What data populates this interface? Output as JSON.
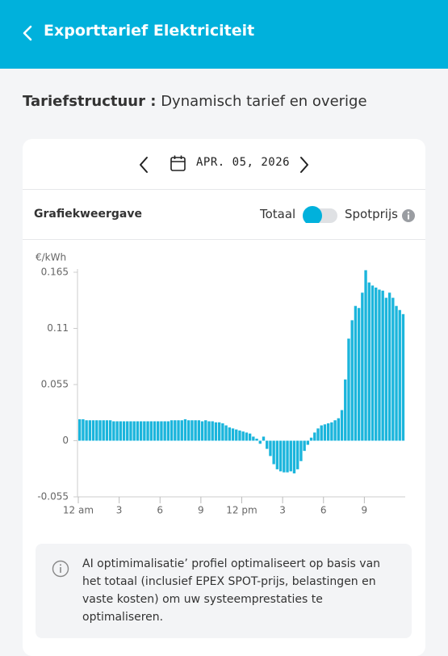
{
  "header": {
    "title": "Exporttarief Elektriciteit"
  },
  "tariff": {
    "label": "Tariefstructuur :",
    "value": "Dynamisch tarief en overige"
  },
  "date": "APR. 05, 2026",
  "view": {
    "label": "Grafiekweergave",
    "toggle_left": "Totaal",
    "toggle_right": "Spotprijs"
  },
  "chart_data": {
    "type": "bar",
    "y_label": "€/kWh",
    "color": "#1bb5dc",
    "x": [
      0,
      0.25,
      0.5,
      0.75,
      1,
      1.25,
      1.5,
      1.75,
      2,
      2.25,
      2.5,
      2.75,
      3,
      3.25,
      3.5,
      3.75,
      4,
      4.25,
      4.5,
      4.75,
      5,
      5.25,
      5.5,
      5.75,
      6,
      6.25,
      6.5,
      6.75,
      7,
      7.25,
      7.5,
      7.75,
      8,
      8.25,
      8.5,
      8.75,
      9,
      9.25,
      9.5,
      9.75,
      10,
      10.25,
      10.5,
      10.75,
      11,
      11.25,
      11.5,
      11.75,
      12,
      12.25,
      12.5,
      12.75,
      13,
      13.25,
      13.5,
      13.75,
      14,
      14.25,
      14.5,
      14.75,
      15,
      15.25,
      15.5,
      15.75,
      16,
      16.25,
      16.5,
      16.75,
      17,
      17.25,
      17.5,
      17.75,
      18,
      18.25,
      18.5,
      18.75,
      19,
      19.25,
      19.5,
      19.75,
      20,
      20.25,
      20.5,
      20.75,
      21,
      21.25,
      21.5,
      21.75,
      22,
      22.25,
      22.5,
      22.75,
      23,
      23.25,
      23.5,
      23.75
    ],
    "values": [
      0.021,
      0.021,
      0.02,
      0.02,
      0.02,
      0.02,
      0.02,
      0.02,
      0.02,
      0.02,
      0.019,
      0.019,
      0.019,
      0.019,
      0.019,
      0.019,
      0.019,
      0.019,
      0.019,
      0.019,
      0.019,
      0.019,
      0.019,
      0.019,
      0.019,
      0.019,
      0.019,
      0.02,
      0.02,
      0.02,
      0.02,
      0.021,
      0.02,
      0.02,
      0.02,
      0.02,
      0.019,
      0.02,
      0.019,
      0.019,
      0.018,
      0.018,
      0.017,
      0.015,
      0.013,
      0.012,
      0.011,
      0.01,
      0.009,
      0.008,
      0.007,
      0.004,
      0.002,
      -0.003,
      0.004,
      -0.008,
      -0.015,
      -0.023,
      -0.028,
      -0.03,
      -0.031,
      -0.031,
      -0.03,
      -0.032,
      -0.028,
      -0.02,
      -0.01,
      -0.004,
      0.003,
      0.008,
      0.012,
      0.015,
      0.016,
      0.017,
      0.018,
      0.02,
      0.022,
      0.03,
      0.06,
      0.1,
      0.118,
      0.132,
      0.13,
      0.145,
      0.167,
      0.155,
      0.152,
      0.15,
      0.148,
      0.147,
      0.14,
      0.145,
      0.14,
      0.132,
      0.128,
      0.124
    ],
    "xlim": [
      0,
      24
    ],
    "xticks": [
      {
        "value": 0,
        "label": "12 am"
      },
      3,
      6,
      9,
      {
        "value": 12,
        "label": "12 pm"
      },
      {
        "value": 15,
        "label": "3"
      },
      {
        "value": 18,
        "label": "6"
      },
      {
        "value": 21,
        "label": "9"
      }
    ],
    "ylim": [
      -0.055,
      0.165
    ],
    "yticks": [
      0.165,
      0.11,
      0.055,
      0,
      -0.055
    ]
  },
  "info": {
    "lines": [
      "AI optimimalisatie’ profiel optimaliseert op basis van",
      "het totaal (inclusief EPEX SPOT-prijs, belastingen en",
      "vaste kosten) om uw systeemprestaties te",
      "optimaliseren."
    ]
  }
}
